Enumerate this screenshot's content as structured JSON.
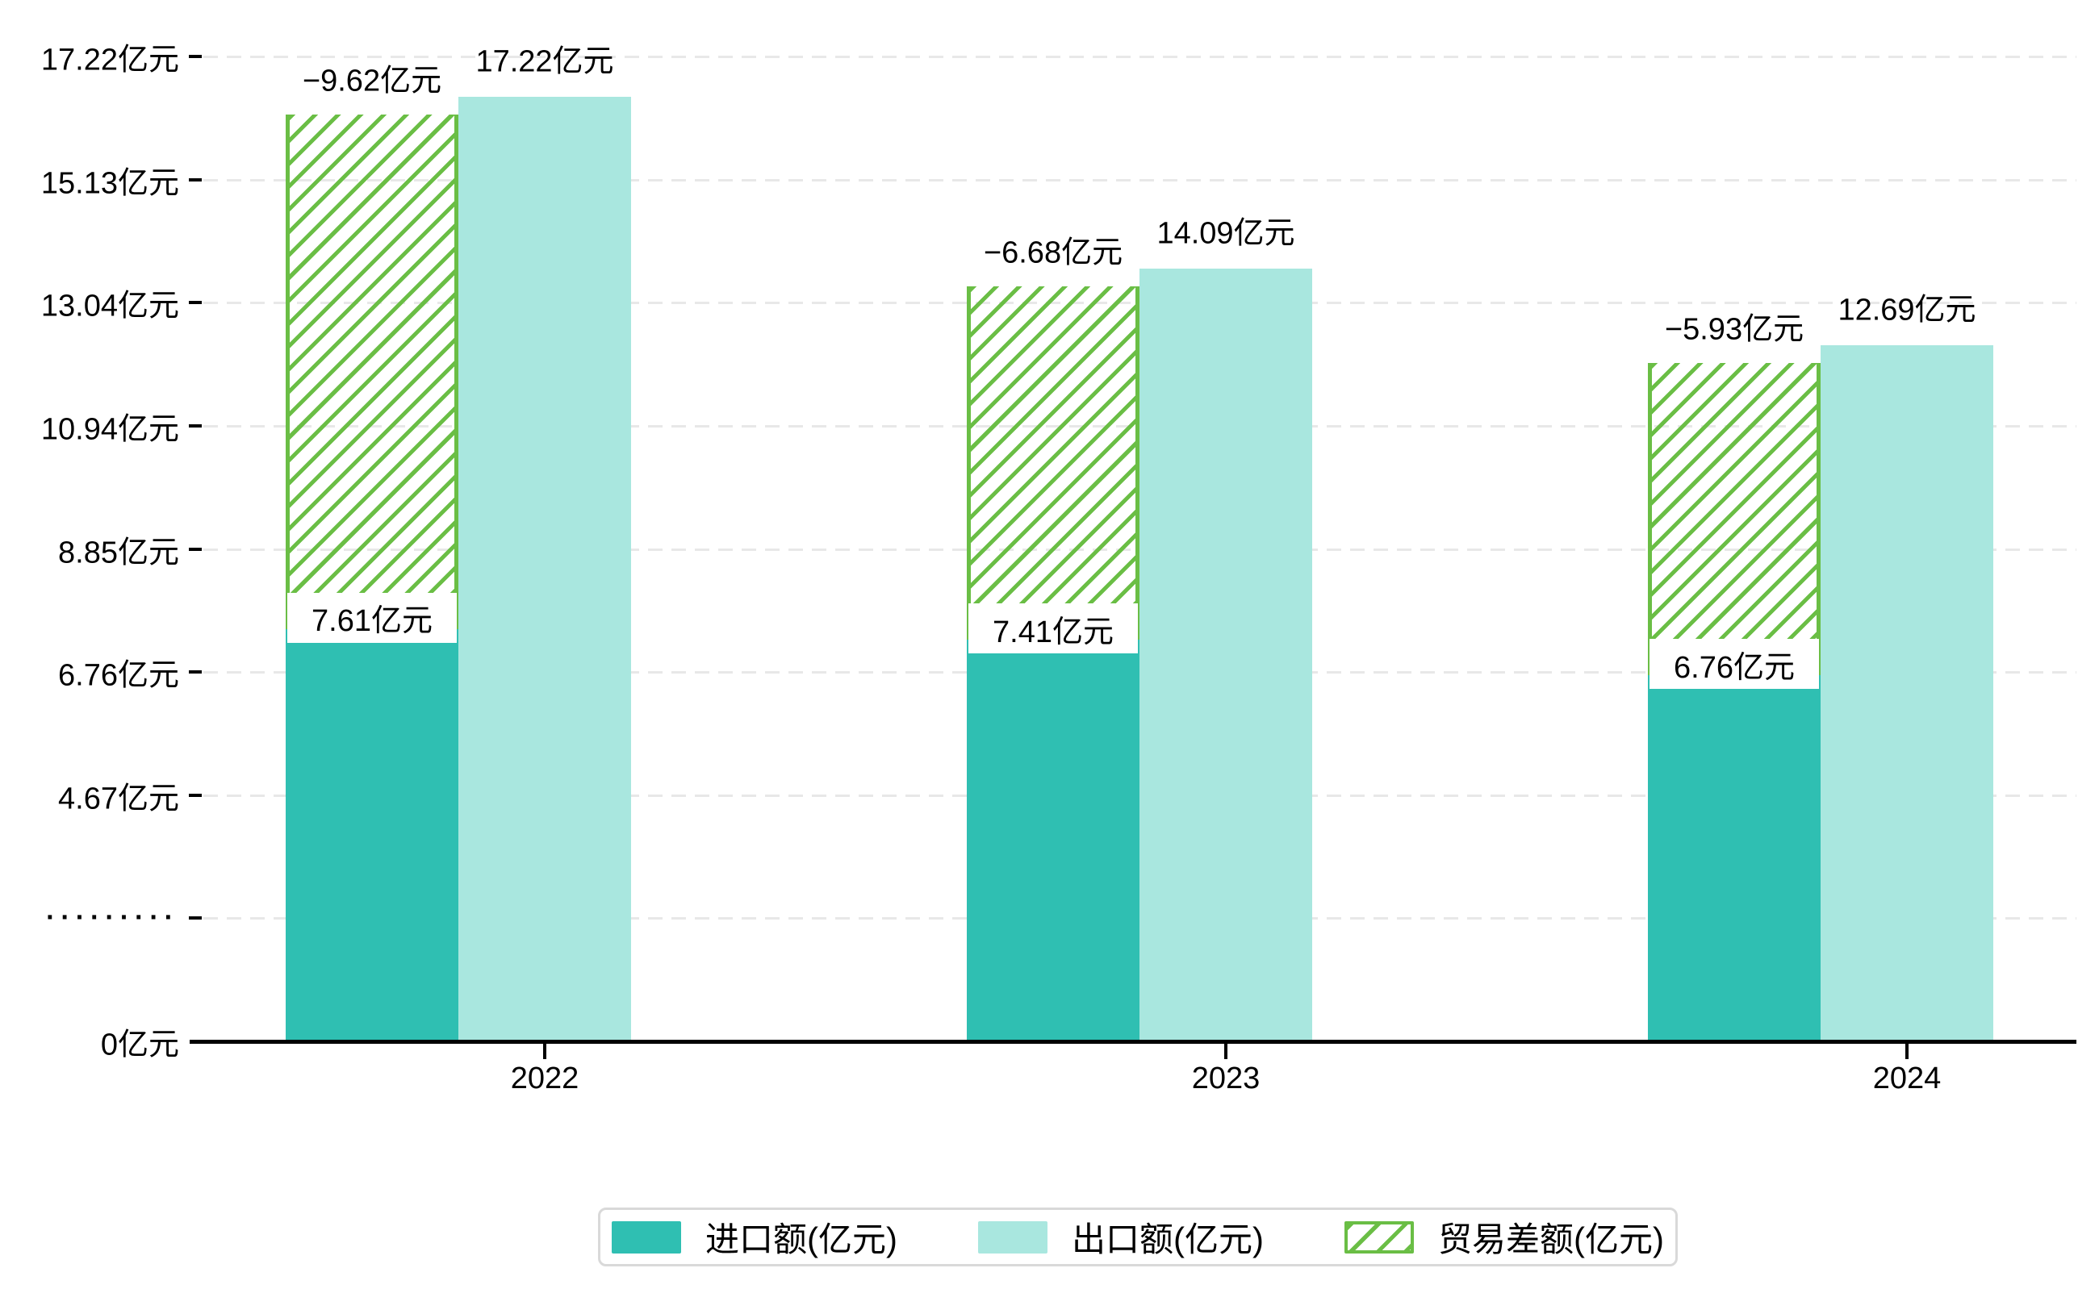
{
  "chart_data": {
    "type": "bar",
    "title": "",
    "categories": [
      "2022",
      "2023",
      "2024"
    ],
    "series": [
      {
        "name": "进口额(亿元)",
        "values": [
          7.61,
          7.41,
          6.76
        ],
        "data_labels": [
          "7.61亿元",
          "7.41亿元",
          "6.76亿元"
        ],
        "color": "#2fbfb2",
        "style": "solid"
      },
      {
        "name": "出口额(亿元)",
        "values": [
          17.22,
          14.09,
          12.69
        ],
        "data_labels": [
          "17.22亿元",
          "14.09亿元",
          "12.69亿元"
        ],
        "color": "#a9e7df",
        "style": "solid"
      },
      {
        "name": "贸易差额(亿元)",
        "values": [
          -9.62,
          -6.68,
          -5.93
        ],
        "data_labels": [
          "−9.62亿元",
          "−6.68亿元",
          "−5.93亿元"
        ],
        "color": "#6abe45",
        "style": "hatched"
      }
    ],
    "y_axis": {
      "unit": "亿元",
      "range": [
        0,
        17.22
      ],
      "tick_labels_top_to_bottom": [
        "17.22亿元",
        "15.13亿元",
        "13.04亿元",
        "10.94亿元",
        "8.85亿元",
        "6.76亿元",
        "4.67亿元",
        "·········",
        "0亿元"
      ],
      "gridline_style": "dashed"
    },
    "x_axis": {
      "tick_labels": [
        "2022",
        "2023",
        "2024"
      ]
    },
    "legend": {
      "position": "bottom",
      "entries": [
        "进口额(亿元)",
        "出口额(亿元)",
        "贸易差额(亿元)"
      ]
    }
  },
  "colors": {
    "import": "#2fbfb2",
    "export": "#a9e7df",
    "balance": "#6abe45",
    "gridline": "#e8e8e8",
    "axis": "#000000",
    "text": "#000000",
    "legend_border": "#d9d9d9",
    "background": "#ffffff"
  }
}
